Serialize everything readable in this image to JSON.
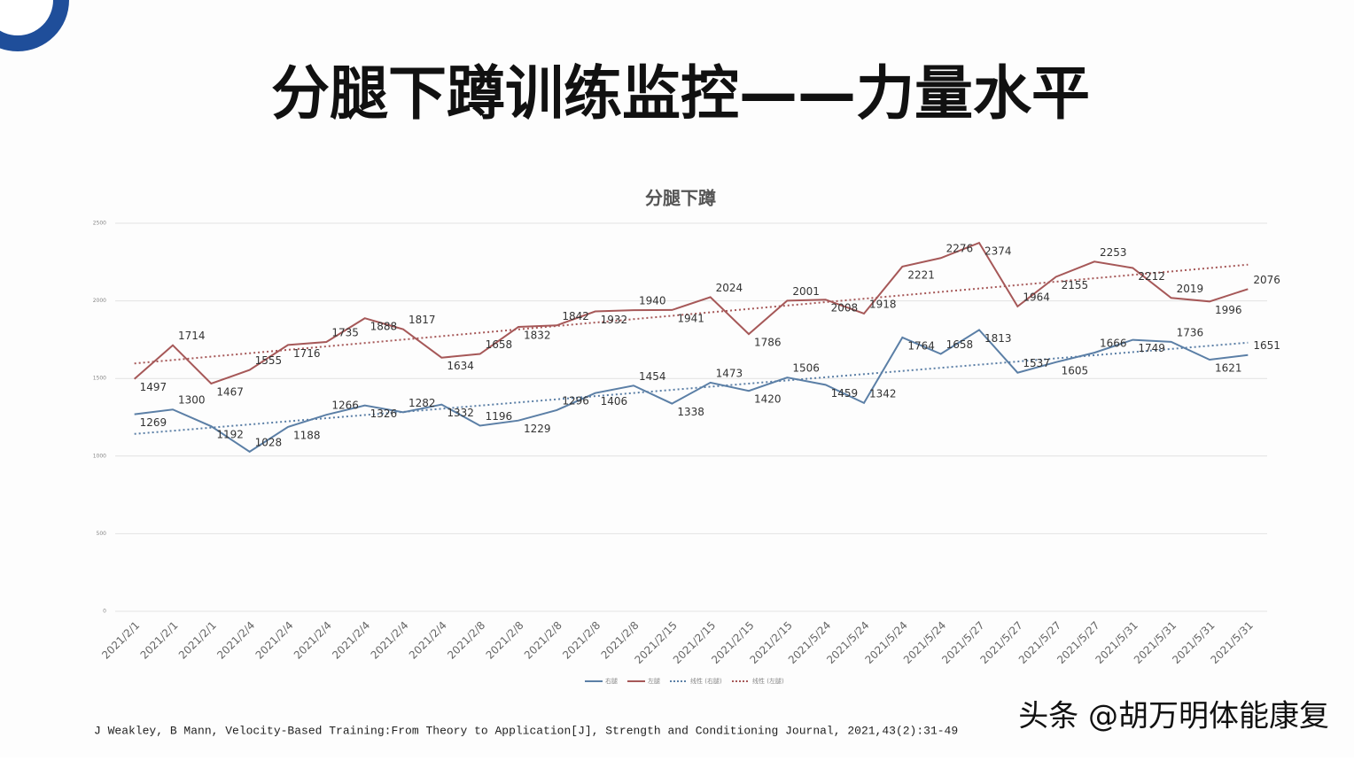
{
  "title": "分腿下蹲训练监控——力量水平",
  "chart_data": {
    "type": "line",
    "title": "分腿下蹲",
    "categories": [
      "2021/2/1",
      "2021/2/1",
      "2021/2/1",
      "2021/2/4",
      "2021/2/4",
      "2021/2/4",
      "2021/2/4",
      "2021/2/4",
      "2021/2/4",
      "2021/2/8",
      "2021/2/8",
      "2021/2/8",
      "2021/2/8",
      "2021/2/8",
      "2021/2/15",
      "2021/2/15",
      "2021/2/15",
      "2021/2/15",
      "2021/5/24",
      "2021/5/24",
      "2021/5/24",
      "2021/5/24",
      "2021/5/27",
      "2021/5/27",
      "2021/5/27",
      "2021/5/27",
      "2021/5/31",
      "2021/5/31",
      "2021/5/31",
      "2021/5/31"
    ],
    "series": [
      {
        "name": "右腿",
        "color": "#5b7fa6",
        "trendline": "线性 (右腿)",
        "values": [
          1269,
          1300,
          1192,
          1028,
          1188,
          1266,
          1326,
          1282,
          1332,
          1196,
          1229,
          1296,
          1406,
          1454,
          1338,
          1473,
          1420,
          1506,
          1459,
          1342,
          1764,
          1658,
          1813,
          1537,
          1605,
          1666,
          1749,
          1736,
          1621,
          1651
        ]
      },
      {
        "name": "左腿",
        "color": "#a65858",
        "trendline": "线性 (左腿)",
        "values": [
          1497,
          1714,
          1467,
          1555,
          1716,
          1735,
          1888,
          1817,
          1634,
          1658,
          1832,
          1842,
          1932,
          1940,
          1941,
          2024,
          1786,
          2001,
          2008,
          1918,
          2221,
          2276,
          2374,
          1964,
          2155,
          2253,
          2212,
          2019,
          1996,
          2076
        ]
      }
    ],
    "ylim": [
      0,
      2500
    ],
    "yticks": [
      0,
      500,
      1000,
      1500,
      2000,
      2500
    ],
    "grid": true,
    "legend": "bottom"
  },
  "citation": "J Weakley, B Mann, Velocity-Based Training:From Theory to Application[J], Strength and Conditioning Journal, 2021,43(2):31-49",
  "watermark": "头条 @胡万明体能康复"
}
